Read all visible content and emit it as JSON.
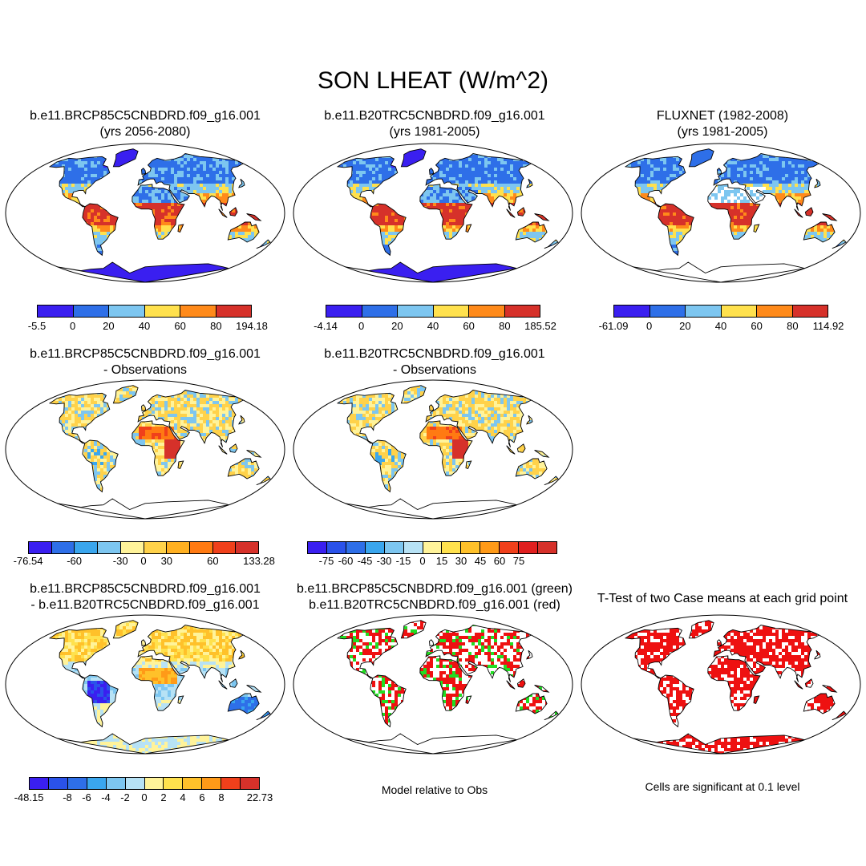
{
  "title": "SON LHEAT (W/m^2)",
  "panels": [
    {
      "t1": "b.e11.BRCP85C5CNBDRD.f09_g16.001",
      "t2": "(yrs 2056-2080)",
      "style": "abs"
    },
    {
      "t1": "b.e11.B20TRC5CNBDRD.f09_g16.001",
      "t2": "(yrs 1981-2005)",
      "style": "abs"
    },
    {
      "t1": "FLUXNET (1982-2008)",
      "t2": "(yrs 1981-2005)",
      "style": "obs"
    },
    {
      "t1": "b.e11.BRCP85C5CNBDRD.f09_g16.001",
      "t2": "- Observations",
      "style": "bias"
    },
    {
      "t1": "b.e11.B20TRC5CNBDRD.f09_g16.001",
      "t2": "- Observations",
      "style": "bias"
    },
    {
      "t1": "b.e11.BRCP85C5CNBDRD.f09_g16.001",
      "t2": "- b.e11.B20TRC5CNBDRD.f09_g16.001",
      "style": "diff"
    },
    {
      "t1": "b.e11.BRCP85C5CNBDRD.f09_g16.001 (green)",
      "t2": "b.e11.B20TRC5CNBDRD.f09_g16.001 (red)",
      "style": "rank"
    },
    {
      "t1": "T-Test of two Case means at each grid point",
      "t2": "",
      "style": "ttest"
    }
  ],
  "colorbars": [
    {
      "colors": [
        "#3a1ff0",
        "#2e6fe8",
        "#7dc6f0",
        "#ffe14d",
        "#ff8a1a",
        "#d6312a"
      ],
      "labels": [
        "-5.5",
        "0",
        "20",
        "40",
        "60",
        "80",
        "194.18"
      ]
    },
    {
      "colors": [
        "#3a1ff0",
        "#2e6fe8",
        "#7dc6f0",
        "#ffe14d",
        "#ff8a1a",
        "#d6312a"
      ],
      "labels": [
        "-4.14",
        "0",
        "20",
        "40",
        "60",
        "80",
        "185.52"
      ]
    },
    {
      "colors": [
        "#3a1ff0",
        "#2e6fe8",
        "#7dc6f0",
        "#ffe14d",
        "#ff8a1a",
        "#d6312a"
      ],
      "labels": [
        "-61.09",
        "0",
        "20",
        "40",
        "60",
        "80",
        "114.92"
      ]
    },
    {
      "colors": [
        "#3a1ff0",
        "#2e6fe8",
        "#3aa6ee",
        "#7dc6f0",
        "#fff39a",
        "#ffd24a",
        "#ffb021",
        "#ff7a12",
        "#f0401b",
        "#d6312a"
      ],
      "labels": [
        "-76.54",
        "-60",
        "-30",
        "0",
        "30",
        "60",
        "133.28"
      ],
      "tickAt": [
        0,
        2,
        4,
        5,
        6,
        8,
        10
      ]
    },
    {
      "colors": [
        "#3a1ff0",
        "#2a52ea",
        "#2e6fe8",
        "#3aa6ee",
        "#7dc6f0",
        "#b7e2f5",
        "#fff39a",
        "#ffe14d",
        "#ffc12a",
        "#ff9a18",
        "#f0401b",
        "#e01f1f",
        "#d6312a"
      ],
      "labels": [
        "-75",
        "-60",
        "-45",
        "-30",
        "-15",
        "0",
        "15",
        "30",
        "45",
        "60",
        "75"
      ],
      "tickAt": [
        1,
        2,
        3,
        4,
        5,
        6,
        7,
        8,
        9,
        10,
        11
      ]
    },
    {
      "colors": [
        "#3a1ff0",
        "#2a52ea",
        "#2e6fe8",
        "#3aa6ee",
        "#7dc6f0",
        "#b7e2f5",
        "#fff39a",
        "#ffe14d",
        "#ffc12a",
        "#ff9a18",
        "#f0401b",
        "#d6312a"
      ],
      "labels": [
        "-48.15",
        "-8",
        "-6",
        "-4",
        "-2",
        "0",
        "2",
        "4",
        "6",
        "8",
        "22.73"
      ],
      "tickAt": [
        0,
        2,
        3,
        4,
        5,
        6,
        7,
        8,
        9,
        10,
        12
      ]
    }
  ],
  "notes": {
    "rank": "Model relative to Obs",
    "ttest": "Cells are significant at 0.1 level"
  }
}
